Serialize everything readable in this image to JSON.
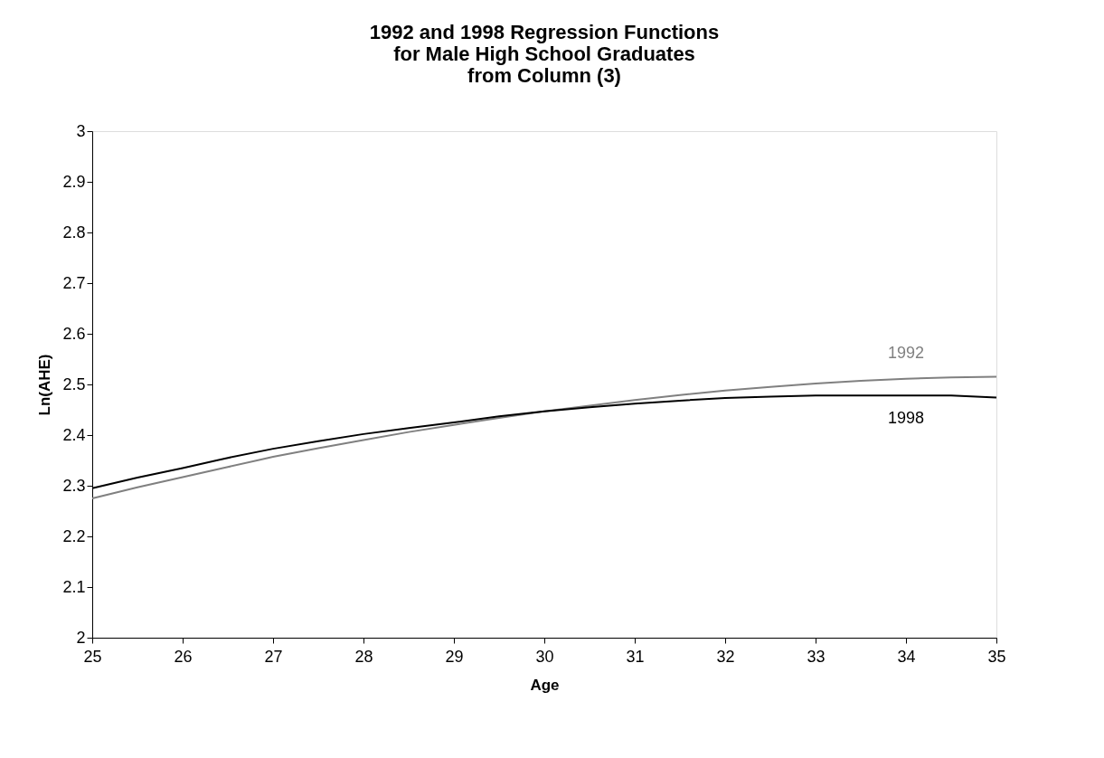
{
  "chart_data": {
    "type": "line",
    "title": "1992 and 1998 Regression Functions\nfor Male High School Graduates\nfrom Column (3)",
    "xlabel": "Age",
    "ylabel": "Ln(AHE)",
    "x": [
      25,
      25.5,
      26,
      26.5,
      27,
      27.5,
      28,
      28.5,
      29,
      29.5,
      30,
      30.5,
      31,
      31.5,
      32,
      32.5,
      33,
      33.5,
      34,
      34.5,
      35
    ],
    "series": [
      {
        "name": "1992",
        "color": "#808080",
        "values": [
          2.275,
          2.297,
          2.317,
          2.337,
          2.357,
          2.374,
          2.39,
          2.406,
          2.42,
          2.434,
          2.447,
          2.458,
          2.469,
          2.479,
          2.488,
          2.495,
          2.502,
          2.507,
          2.511,
          2.514,
          2.515
        ]
      },
      {
        "name": "1998",
        "color": "#000000",
        "values": [
          2.295,
          2.316,
          2.335,
          2.355,
          2.373,
          2.388,
          2.402,
          2.414,
          2.425,
          2.437,
          2.447,
          2.455,
          2.462,
          2.468,
          2.473,
          2.476,
          2.478,
          2.478,
          2.478,
          2.478,
          2.474
        ]
      }
    ],
    "xlim": [
      25,
      35
    ],
    "xticks": [
      25,
      26,
      27,
      28,
      29,
      30,
      31,
      32,
      33,
      34,
      35
    ],
    "ylim": [
      2,
      3
    ],
    "yticks": [
      2,
      2.1,
      2.2,
      2.3,
      2.4,
      2.5,
      2.6,
      2.7,
      2.8,
      2.9,
      3
    ],
    "grid": false,
    "legend": false,
    "marker": "none",
    "line_style": "solid"
  }
}
